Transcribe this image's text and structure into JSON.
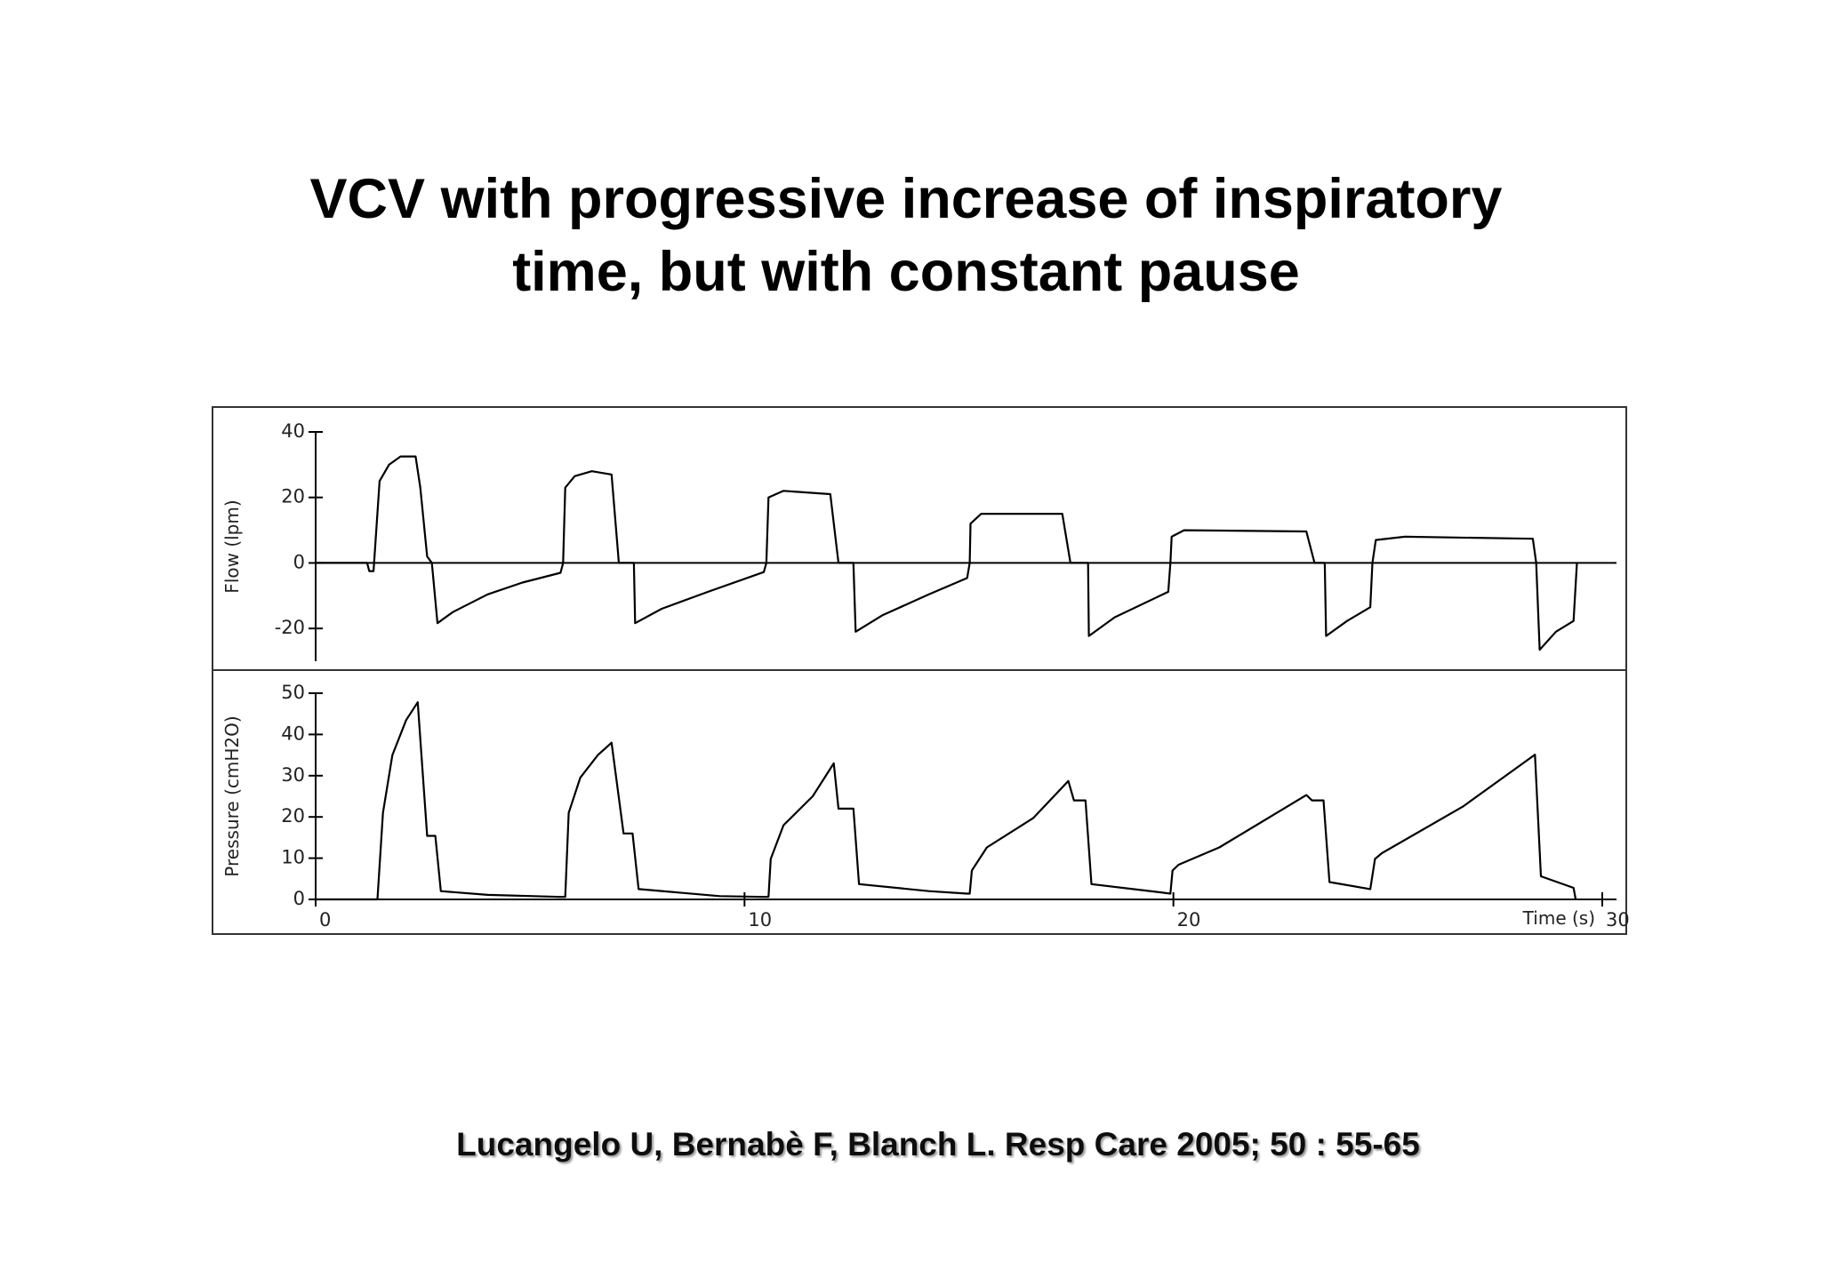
{
  "title_lines": [
    "VCV with progressive increase of inspiratory",
    "time, but with constant pause"
  ],
  "citation": "Lucangelo U, Bernabè F, Blanch L.  Resp Care 2005; 50 : 55-65",
  "chart_data": [
    {
      "type": "line",
      "y_label": "Flow (lpm)",
      "color": "#000000",
      "xlim": [
        0,
        30
      ],
      "ylim": [
        -30,
        40
      ],
      "yticks": [
        -20,
        0,
        20,
        40
      ],
      "x": [
        0,
        1.2,
        1.25,
        1.35,
        1.49,
        1.71,
        1.98,
        2.33,
        2.44,
        2.6,
        2.71,
        2.84,
        3.2,
        4.01,
        4.82,
        5.71,
        5.77,
        5.82,
        6.04,
        6.44,
        6.9,
        7.07,
        7.42,
        7.45,
        8.07,
        9.15,
        10.45,
        10.51,
        10.56,
        10.91,
        12.0,
        12.19,
        12.54,
        12.59,
        13.21,
        14.3,
        15.19,
        15.25,
        15.27,
        15.52,
        17.41,
        17.6,
        18.01,
        18.03,
        18.63,
        19.88,
        19.93,
        19.96,
        20.25,
        23.1,
        23.29,
        23.53,
        23.56,
        24.05,
        24.59,
        24.64,
        24.72,
        25.4,
        28.38,
        28.46,
        28.54,
        28.92,
        29.33,
        29.41
      ],
      "values": [
        0,
        0,
        -2.5,
        -2.5,
        25,
        30,
        32.5,
        32.5,
        23,
        2,
        0,
        -18.4,
        -15,
        -9.6,
        -6,
        -3,
        0,
        23,
        26.5,
        28,
        27,
        0,
        0,
        -18.4,
        -14,
        -8.8,
        -2.8,
        0,
        20,
        22,
        21,
        0,
        0,
        -21,
        -16,
        -9.6,
        -4.6,
        0,
        12,
        15,
        15,
        0,
        0,
        -22.3,
        -16.6,
        -8.8,
        0,
        8,
        10,
        9.6,
        0,
        0,
        -22.3,
        -17.7,
        -13.5,
        0,
        7,
        8,
        7.4,
        0,
        -26.5,
        -21,
        -17.7,
        0
      ]
    },
    {
      "type": "line",
      "y_label": "Pressure (cmH2O)",
      "x_label": "Time (s)",
      "color": "#000000",
      "xlim": [
        0,
        30
      ],
      "xticks": [
        0,
        10,
        20,
        30
      ],
      "ylim": [
        0,
        50
      ],
      "yticks": [
        0,
        10,
        20,
        30,
        40,
        50
      ],
      "x": [
        0,
        1.44,
        1.57,
        1.79,
        2.11,
        2.38,
        2.6,
        2.79,
        2.92,
        4.01,
        5.71,
        5.82,
        5.9,
        6.17,
        6.58,
        6.9,
        7.18,
        7.39,
        7.53,
        9.42,
        10.45,
        10.56,
        10.61,
        10.91,
        11.59,
        12.08,
        12.19,
        12.54,
        12.67,
        14.3,
        15.19,
        15.25,
        15.3,
        15.65,
        16.73,
        17.55,
        17.68,
        17.95,
        18.09,
        19.71,
        19.93,
        19.98,
        20.12,
        21.07,
        23.1,
        23.23,
        23.5,
        23.64,
        24.59,
        24.7,
        24.86,
        26.75,
        28.43,
        28.57,
        29.33,
        29.38
      ],
      "values": [
        0,
        0,
        21,
        35,
        43.5,
        47.8,
        15.4,
        15.4,
        2,
        1.1,
        0.6,
        0.6,
        21,
        29.5,
        35,
        38,
        16,
        16,
        2.5,
        0.8,
        0.6,
        0.6,
        9.8,
        18,
        25,
        33,
        22,
        22,
        3.7,
        2,
        1.4,
        1.4,
        7,
        12.6,
        19.7,
        28.7,
        24,
        24,
        3.7,
        1.7,
        1.4,
        7,
        8.4,
        12.6,
        25.3,
        24,
        24,
        4.2,
        2.5,
        9.8,
        11.2,
        22.5,
        35.1,
        5.6,
        2.8,
        0
      ]
    }
  ]
}
